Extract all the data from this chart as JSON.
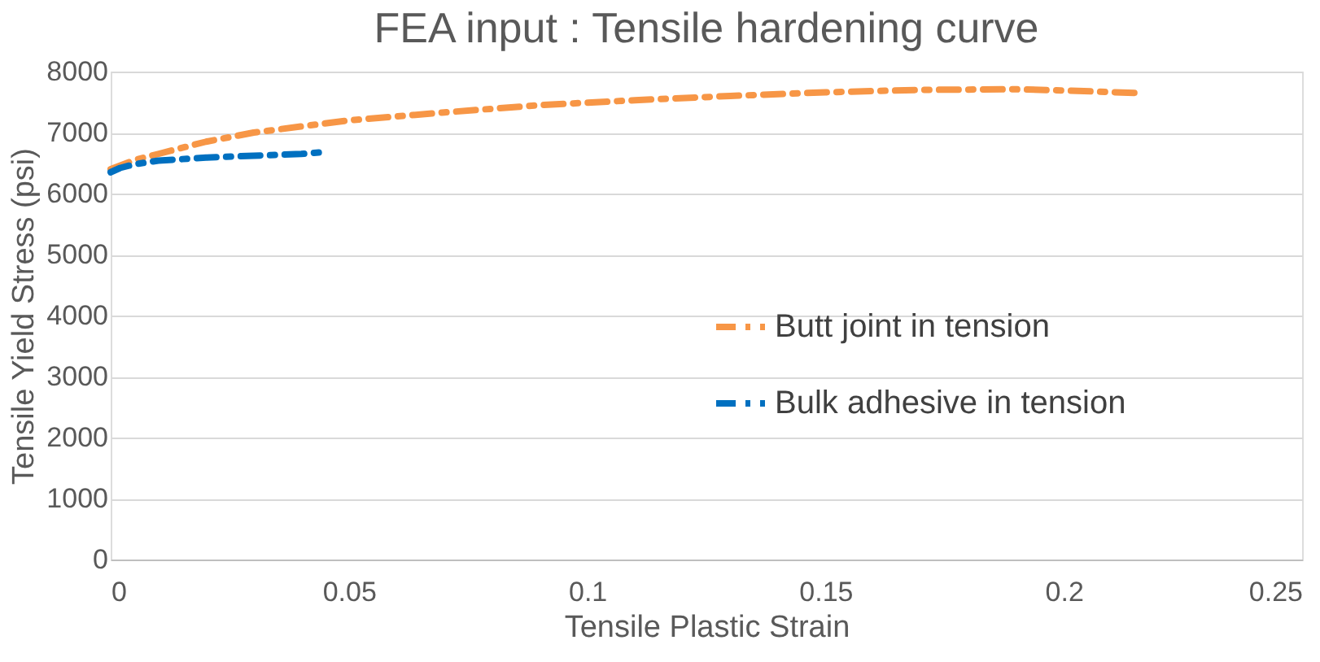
{
  "chart_data": {
    "type": "line",
    "title": "FEA input : Tensile hardening curve",
    "xlabel": "Tensile Plastic Strain",
    "ylabel": "Tensile Yield Stress (psi)",
    "series": [
      {
        "name": "Butt joint in tension",
        "color": "#f79646",
        "x": [
          0,
          0.005,
          0.01,
          0.02,
          0.03,
          0.04,
          0.05,
          0.07,
          0.09,
          0.11,
          0.13,
          0.15,
          0.17,
          0.19,
          0.2,
          0.215
        ],
        "values": [
          6400,
          6550,
          6650,
          6850,
          7000,
          7100,
          7200,
          7330,
          7450,
          7530,
          7600,
          7660,
          7700,
          7710,
          7690,
          7650
        ]
      },
      {
        "name": "Bulk adhesive in tension",
        "color": "#0070c0",
        "x": [
          0,
          0.002,
          0.005,
          0.01,
          0.02,
          0.03,
          0.04,
          0.045
        ],
        "values": [
          6350,
          6420,
          6480,
          6540,
          6590,
          6620,
          6650,
          6680
        ]
      }
    ],
    "xlim": [
      0,
      0.25
    ],
    "xticks": [
      0,
      0.05,
      0.1,
      0.15,
      0.2,
      0.25
    ],
    "ylim": [
      0,
      8000
    ],
    "yticks": [
      0,
      1000,
      2000,
      3000,
      4000,
      5000,
      6000,
      7000,
      8000
    ],
    "grid": "y",
    "legend": "right",
    "line_style": "dashed",
    "marker": "none"
  }
}
